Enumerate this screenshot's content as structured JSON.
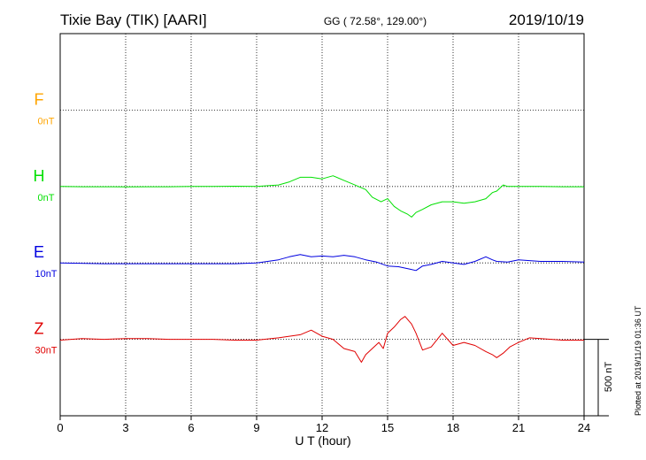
{
  "header": {
    "station": "Tixie Bay (TIK)  [AARI]",
    "coords": "GG ( 72.58°, 129.00°)",
    "date": "2019/10/19"
  },
  "side_note": "Plotted at 2019/11/19 01:36 UT",
  "scale_bar": {
    "label": "500 nT",
    "value_nT": 500
  },
  "chart_data": {
    "type": "line",
    "xlabel": "U T (hour)",
    "xlim": [
      0,
      24
    ],
    "xticks": [
      0,
      3,
      6,
      9,
      12,
      15,
      18,
      21,
      24
    ],
    "grid": true,
    "series": [
      {
        "name": "F",
        "offset_label": "0nT",
        "color": "#ffa500",
        "row": 1,
        "points": []
      },
      {
        "name": "H",
        "offset_label": "0nT",
        "color": "#00e000",
        "row": 2,
        "points": [
          [
            0,
            0
          ],
          [
            1,
            -2
          ],
          [
            2,
            -2
          ],
          [
            3,
            -3
          ],
          [
            4,
            -2
          ],
          [
            5,
            -2
          ],
          [
            6,
            0
          ],
          [
            7,
            0
          ],
          [
            8,
            2
          ],
          [
            9,
            0
          ],
          [
            10,
            10
          ],
          [
            10.5,
            30
          ],
          [
            11,
            60
          ],
          [
            11.5,
            60
          ],
          [
            12,
            50
          ],
          [
            12.5,
            70
          ],
          [
            13,
            40
          ],
          [
            13.5,
            10
          ],
          [
            14,
            -20
          ],
          [
            14.3,
            -70
          ],
          [
            14.7,
            -100
          ],
          [
            15,
            -80
          ],
          [
            15.3,
            -130
          ],
          [
            15.6,
            -160
          ],
          [
            15.9,
            -180
          ],
          [
            16.1,
            -200
          ],
          [
            16.3,
            -170
          ],
          [
            16.6,
            -150
          ],
          [
            17,
            -120
          ],
          [
            17.5,
            -100
          ],
          [
            18,
            -100
          ],
          [
            18.5,
            -110
          ],
          [
            19,
            -100
          ],
          [
            19.5,
            -80
          ],
          [
            19.8,
            -40
          ],
          [
            20,
            -30
          ],
          [
            20.3,
            10
          ],
          [
            20.5,
            0
          ],
          [
            21,
            0
          ],
          [
            22,
            0
          ],
          [
            23,
            -2
          ],
          [
            24,
            -2
          ]
        ]
      },
      {
        "name": "E",
        "offset_label": "10nT",
        "color": "#0000e0",
        "row": 3,
        "points": [
          [
            0,
            0
          ],
          [
            2,
            -5
          ],
          [
            4,
            -5
          ],
          [
            6,
            -5
          ],
          [
            8,
            -5
          ],
          [
            9,
            0
          ],
          [
            10,
            20
          ],
          [
            10.5,
            40
          ],
          [
            11,
            55
          ],
          [
            11.5,
            40
          ],
          [
            12,
            45
          ],
          [
            12.5,
            40
          ],
          [
            13,
            50
          ],
          [
            13.5,
            40
          ],
          [
            14,
            20
          ],
          [
            14.5,
            5
          ],
          [
            15,
            -20
          ],
          [
            15.5,
            -25
          ],
          [
            16,
            -40
          ],
          [
            16.3,
            -50
          ],
          [
            16.6,
            -20
          ],
          [
            17,
            -10
          ],
          [
            17.5,
            10
          ],
          [
            18,
            0
          ],
          [
            18.5,
            -10
          ],
          [
            19,
            10
          ],
          [
            19.5,
            40
          ],
          [
            19.8,
            20
          ],
          [
            20,
            10
          ],
          [
            20.5,
            5
          ],
          [
            21,
            20
          ],
          [
            22,
            10
          ],
          [
            23,
            10
          ],
          [
            24,
            5
          ]
        ]
      },
      {
        "name": "Z",
        "offset_label": "30nT",
        "color": "#e00000",
        "row": 4,
        "points": [
          [
            0,
            -5
          ],
          [
            1,
            5
          ],
          [
            2,
            0
          ],
          [
            3,
            5
          ],
          [
            4,
            5
          ],
          [
            5,
            0
          ],
          [
            6,
            0
          ],
          [
            7,
            0
          ],
          [
            8,
            -5
          ],
          [
            9,
            -5
          ],
          [
            10,
            10
          ],
          [
            10.5,
            20
          ],
          [
            11,
            30
          ],
          [
            11.5,
            60
          ],
          [
            12,
            20
          ],
          [
            12.5,
            0
          ],
          [
            13,
            -60
          ],
          [
            13.5,
            -80
          ],
          [
            13.8,
            -150
          ],
          [
            14,
            -100
          ],
          [
            14.3,
            -60
          ],
          [
            14.6,
            -20
          ],
          [
            14.8,
            -60
          ],
          [
            15,
            40
          ],
          [
            15.3,
            80
          ],
          [
            15.6,
            130
          ],
          [
            15.8,
            150
          ],
          [
            16.1,
            100
          ],
          [
            16.3,
            40
          ],
          [
            16.6,
            -70
          ],
          [
            17,
            -50
          ],
          [
            17.5,
            40
          ],
          [
            18,
            -40
          ],
          [
            18.5,
            -20
          ],
          [
            19,
            -40
          ],
          [
            19.5,
            -80
          ],
          [
            19.8,
            -100
          ],
          [
            20,
            -120
          ],
          [
            20.3,
            -90
          ],
          [
            20.6,
            -50
          ],
          [
            21,
            -20
          ],
          [
            21.5,
            10
          ],
          [
            22,
            5
          ],
          [
            23,
            -5
          ],
          [
            24,
            -5
          ]
        ]
      }
    ]
  }
}
